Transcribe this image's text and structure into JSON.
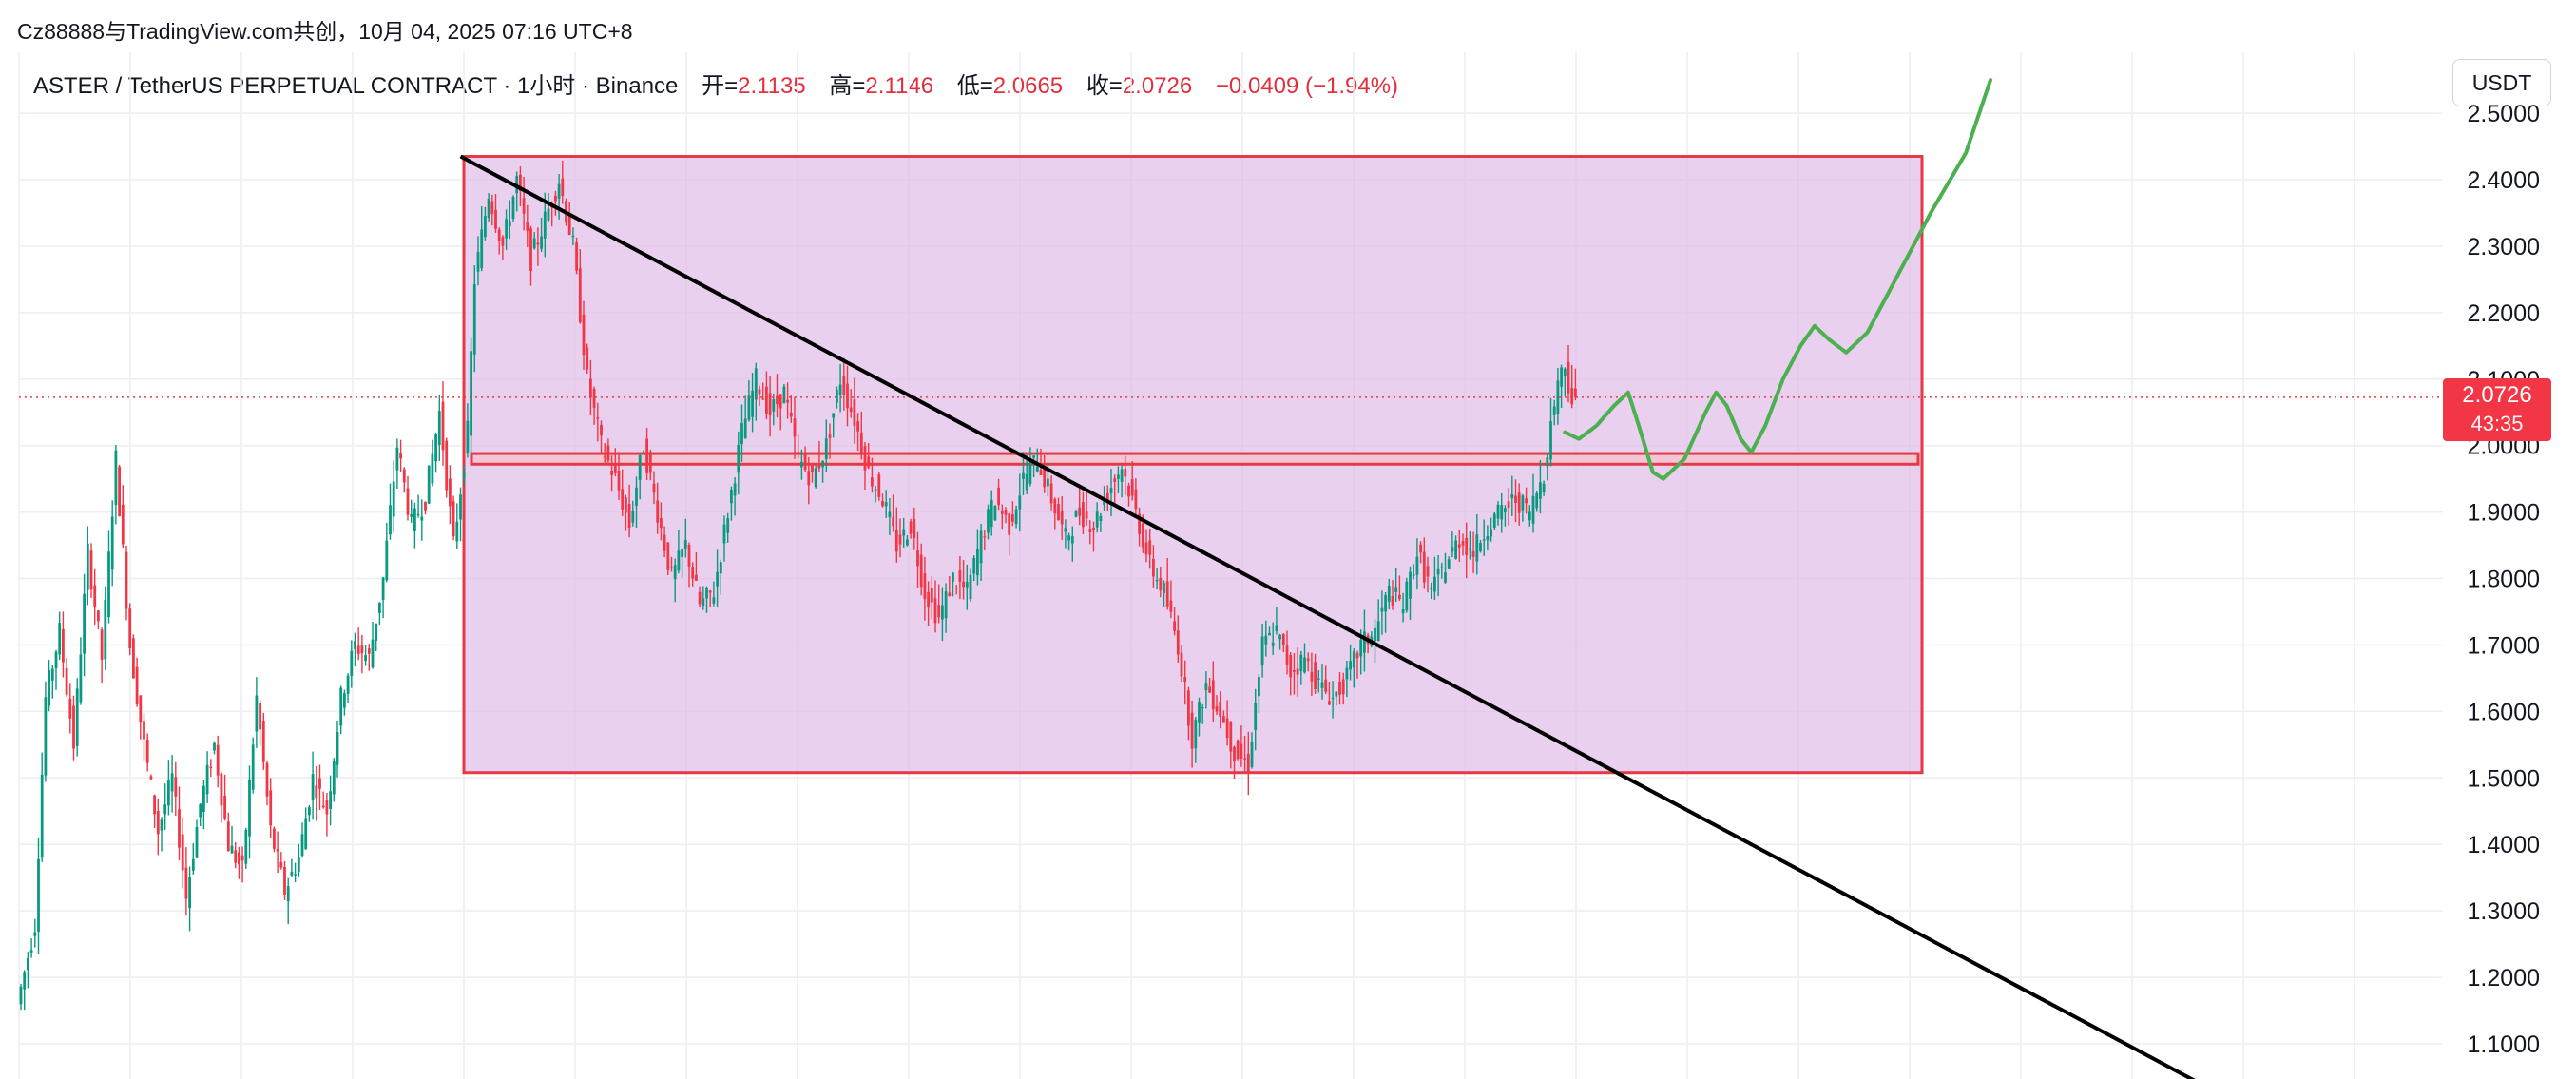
{
  "header": {
    "credit": "Cz88888与TradingView.com共创，10月 04, 2025 07:16 UTC+8"
  },
  "legend": {
    "symbol": "ASTER / TetherUS PERPETUAL CONTRACT · 1小时 · Binance",
    "open_label": "开=",
    "open": "2.1135",
    "high_label": "高=",
    "high": "2.1146",
    "low_label": "低=",
    "low": "2.0665",
    "close_label": "收=",
    "close": "2.0726",
    "change": "−0.0409 (−1.94%)"
  },
  "unit_button": "USDT",
  "price_tag": {
    "price": "2.0726",
    "countdown": "43:35"
  },
  "colors": {
    "up": "#089981",
    "down": "#f23645",
    "zone_fill": "#e1bee7",
    "zone_border": "#e53945",
    "trend_line": "#000000",
    "projection": "#4caf50"
  },
  "chart_data": {
    "type": "candlestick",
    "y_ticks": [
      "2.5000",
      "2.4000",
      "2.3000",
      "2.2000",
      "2.1000",
      "2.0000",
      "1.9000",
      "1.8000",
      "1.7000",
      "1.6000",
      "1.5000",
      "1.4000",
      "1.3000",
      "1.2000",
      "1.1000"
    ],
    "ylim": [
      1.05,
      2.55
    ],
    "last_price": 2.0726,
    "drawings": {
      "range_box": {
        "top": 2.435,
        "bottom": 1.508
      },
      "support_band": {
        "top": 1.988,
        "bottom": 1.972
      },
      "trend_line": {
        "start": 2.435,
        "slope_per_bar": -0.00282
      }
    },
    "path_points": [
      [
        0,
        1.16
      ],
      [
        5,
        1.28
      ],
      [
        8,
        1.62
      ],
      [
        12,
        1.72
      ],
      [
        16,
        1.55
      ],
      [
        20,
        1.84
      ],
      [
        24,
        1.68
      ],
      [
        28,
        1.98
      ],
      [
        32,
        1.7
      ],
      [
        36,
        1.55
      ],
      [
        40,
        1.42
      ],
      [
        44,
        1.5
      ],
      [
        48,
        1.32
      ],
      [
        52,
        1.46
      ],
      [
        56,
        1.55
      ],
      [
        60,
        1.4
      ],
      [
        64,
        1.36
      ],
      [
        68,
        1.62
      ],
      [
        72,
        1.42
      ],
      [
        76,
        1.33
      ],
      [
        80,
        1.38
      ],
      [
        84,
        1.5
      ],
      [
        88,
        1.45
      ],
      [
        92,
        1.62
      ],
      [
        96,
        1.7
      ],
      [
        100,
        1.68
      ],
      [
        104,
        1.8
      ],
      [
        108,
        2.0
      ],
      [
        112,
        1.88
      ],
      [
        116,
        1.92
      ],
      [
        120,
        2.05
      ],
      [
        124,
        1.85
      ],
      [
        128,
        2.02
      ],
      [
        130,
        2.25
      ],
      [
        134,
        2.38
      ],
      [
        138,
        2.3
      ],
      [
        142,
        2.4
      ],
      [
        146,
        2.28
      ],
      [
        150,
        2.34
      ],
      [
        154,
        2.4
      ],
      [
        158,
        2.3
      ],
      [
        162,
        2.1
      ],
      [
        166,
        2.0
      ],
      [
        170,
        1.95
      ],
      [
        174,
        1.88
      ],
      [
        178,
        2.0
      ],
      [
        182,
        1.9
      ],
      [
        186,
        1.8
      ],
      [
        190,
        1.85
      ],
      [
        194,
        1.76
      ],
      [
        198,
        1.78
      ],
      [
        202,
        1.9
      ],
      [
        206,
        2.02
      ],
      [
        210,
        2.1
      ],
      [
        214,
        2.05
      ],
      [
        218,
        2.08
      ],
      [
        222,
        1.98
      ],
      [
        226,
        1.95
      ],
      [
        230,
        2.0
      ],
      [
        234,
        2.1
      ],
      [
        238,
        2.04
      ],
      [
        242,
        1.96
      ],
      [
        246,
        1.92
      ],
      [
        250,
        1.85
      ],
      [
        254,
        1.88
      ],
      [
        258,
        1.78
      ],
      [
        262,
        1.74
      ],
      [
        266,
        1.8
      ],
      [
        270,
        1.78
      ],
      [
        274,
        1.86
      ],
      [
        278,
        1.92
      ],
      [
        282,
        1.88
      ],
      [
        286,
        1.95
      ],
      [
        290,
        1.98
      ],
      [
        294,
        1.92
      ],
      [
        298,
        1.86
      ],
      [
        302,
        1.9
      ],
      [
        306,
        1.88
      ],
      [
        310,
        1.93
      ],
      [
        314,
        1.97
      ],
      [
        318,
        1.9
      ],
      [
        322,
        1.82
      ],
      [
        326,
        1.78
      ],
      [
        330,
        1.7
      ],
      [
        334,
        1.56
      ],
      [
        338,
        1.64
      ],
      [
        342,
        1.6
      ],
      [
        346,
        1.54
      ],
      [
        350,
        1.52
      ],
      [
        354,
        1.7
      ],
      [
        358,
        1.72
      ],
      [
        362,
        1.66
      ],
      [
        366,
        1.68
      ],
      [
        370,
        1.64
      ],
      [
        374,
        1.62
      ],
      [
        378,
        1.65
      ],
      [
        382,
        1.7
      ],
      [
        386,
        1.72
      ],
      [
        390,
        1.78
      ],
      [
        394,
        1.76
      ],
      [
        398,
        1.84
      ],
      [
        402,
        1.78
      ],
      [
        406,
        1.82
      ],
      [
        410,
        1.86
      ],
      [
        414,
        1.84
      ],
      [
        418,
        1.88
      ],
      [
        422,
        1.9
      ],
      [
        426,
        1.92
      ],
      [
        430,
        1.9
      ],
      [
        434,
        1.96
      ],
      [
        438,
        2.1
      ],
      [
        440,
        2.12
      ],
      [
        442,
        2.07
      ]
    ],
    "projection": [
      [
        0,
        2.02
      ],
      [
        4,
        2.01
      ],
      [
        9,
        2.03
      ],
      [
        14,
        2.06
      ],
      [
        18,
        2.08
      ],
      [
        21,
        2.03
      ],
      [
        25,
        1.96
      ],
      [
        28,
        1.95
      ],
      [
        34,
        1.98
      ],
      [
        40,
        2.05
      ],
      [
        43,
        2.08
      ],
      [
        46,
        2.06
      ],
      [
        50,
        2.01
      ],
      [
        53,
        1.99
      ],
      [
        57,
        2.03
      ],
      [
        62,
        2.1
      ],
      [
        67,
        2.15
      ],
      [
        71,
        2.18
      ],
      [
        75,
        2.16
      ],
      [
        80,
        2.14
      ],
      [
        86,
        2.17
      ],
      [
        94,
        2.25
      ],
      [
        104,
        2.35
      ],
      [
        114,
        2.44
      ],
      [
        121,
        2.55
      ]
    ]
  }
}
